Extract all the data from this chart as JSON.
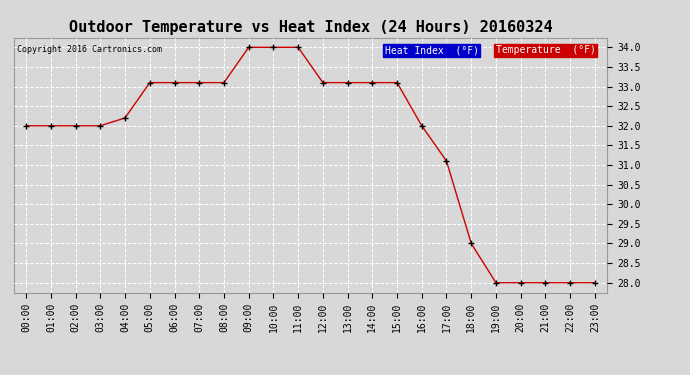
{
  "title": "Outdoor Temperature vs Heat Index (24 Hours) 20160324",
  "copyright_text": "Copyright 2016 Cartronics.com",
  "background_color": "#d8d8d8",
  "plot_bg_color": "#d8d8d8",
  "grid_color": "#ffffff",
  "x_labels": [
    "00:00",
    "01:00",
    "02:00",
    "03:00",
    "04:00",
    "05:00",
    "06:00",
    "07:00",
    "08:00",
    "09:00",
    "10:00",
    "11:00",
    "12:00",
    "13:00",
    "14:00",
    "15:00",
    "16:00",
    "17:00",
    "18:00",
    "19:00",
    "20:00",
    "21:00",
    "22:00",
    "23:00"
  ],
  "temperature_values": [
    32.0,
    32.0,
    32.0,
    32.0,
    32.2,
    33.1,
    33.1,
    33.1,
    33.1,
    34.0,
    34.0,
    34.0,
    33.1,
    33.1,
    33.1,
    33.1,
    32.0,
    31.1,
    29.0,
    28.0,
    28.0,
    28.0,
    28.0,
    28.0
  ],
  "heat_index_values": [
    32.0,
    32.0,
    32.0,
    32.0,
    32.2,
    33.1,
    33.1,
    33.1,
    33.1,
    34.0,
    34.0,
    34.0,
    33.1,
    33.1,
    33.1,
    33.1,
    32.0,
    31.1,
    29.0,
    28.0,
    28.0,
    28.0,
    28.0,
    28.0
  ],
  "ylim_min": 27.75,
  "ylim_max": 34.25,
  "yticks": [
    28.0,
    28.5,
    29.0,
    29.5,
    30.0,
    30.5,
    31.0,
    31.5,
    32.0,
    32.5,
    33.0,
    33.5,
    34.0
  ],
  "line_color_temp": "#cc0000",
  "line_color_heat": "#cc0000",
  "marker": "+",
  "marker_color": "#000000",
  "legend_heat_bg": "#0000cc",
  "legend_temp_bg": "#cc0000",
  "legend_text_color": "#ffffff",
  "title_fontsize": 11,
  "copyright_fontsize": 6,
  "tick_fontsize": 7,
  "legend_fontsize": 7
}
